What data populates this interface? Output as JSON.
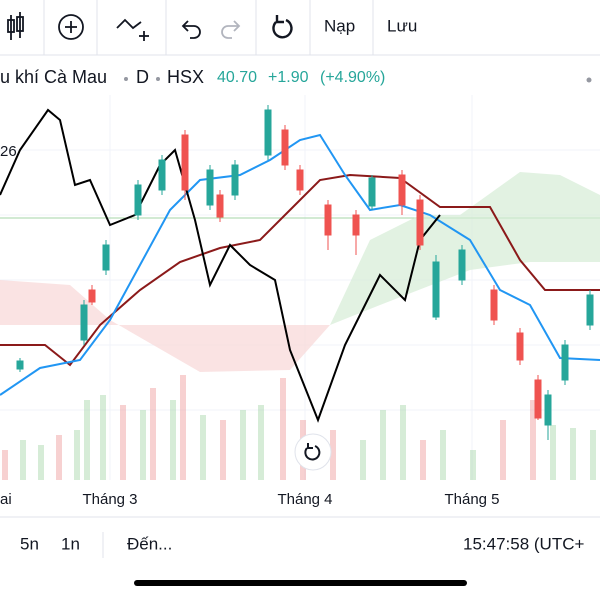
{
  "toolbar": {
    "load": "Nạp",
    "save": "Lưu"
  },
  "header": {
    "symbol_name": "u khí Cà Mau",
    "interval": "D",
    "exchange": "HSX",
    "price": "40.70",
    "change": "+1.90",
    "change_percent": "(+4.90%)"
  },
  "chart": {
    "side_label": "26",
    "x_labels": [
      "ai",
      "Tháng 3",
      "Tháng 4",
      "Tháng 5"
    ]
  },
  "footer": {
    "ranges": [
      "5n",
      "1n"
    ],
    "goto": "Đến...",
    "time": "15:47:58 (UTC+"
  }
}
